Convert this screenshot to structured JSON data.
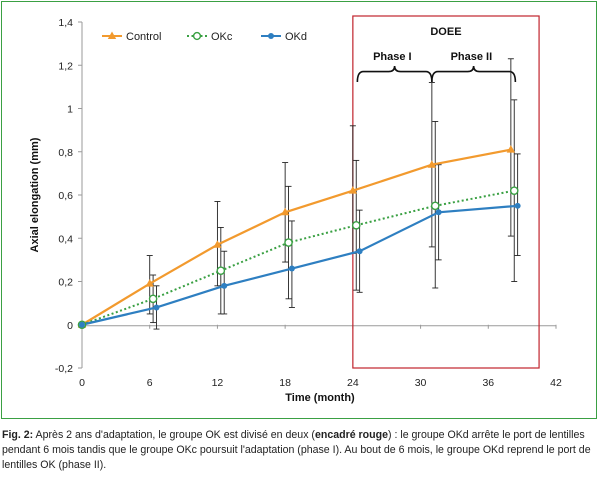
{
  "chart_data": {
    "type": "line",
    "xlabel": "Time (month)",
    "ylabel": "Axial elongation (mm)",
    "xlim": [
      0,
      42
    ],
    "ylim": [
      -0.2,
      1.4
    ],
    "xticks": [
      0,
      6,
      12,
      18,
      24,
      30,
      36,
      42
    ],
    "yticks": [
      -0.2,
      0,
      0.2,
      0.4,
      0.6,
      0.8,
      1,
      1.2,
      1.4
    ],
    "grid": false,
    "legend_position": "top-left",
    "series": [
      {
        "name": "Control",
        "color": "#f29a2e",
        "marker": "triangle",
        "line_style": "solid",
        "x": [
          0,
          6,
          12,
          18,
          24,
          31,
          38
        ],
        "y": [
          0,
          0.19,
          0.37,
          0.52,
          0.62,
          0.74,
          0.81
        ],
        "err_low": [
          0,
          0.05,
          0.18,
          0.29,
          0.33,
          0.36,
          0.41
        ],
        "err_high": [
          0,
          0.32,
          0.57,
          0.75,
          0.92,
          1.12,
          1.23
        ]
      },
      {
        "name": "OKc",
        "color": "#3aa043",
        "marker": "open-circle",
        "line_style": "dotted",
        "x": [
          0,
          6.3,
          12.3,
          18.3,
          24.3,
          31.3,
          38.3
        ],
        "y": [
          0,
          0.12,
          0.25,
          0.38,
          0.46,
          0.55,
          0.62
        ],
        "err_low": [
          0,
          0.01,
          0.05,
          0.12,
          0.16,
          0.17,
          0.2
        ],
        "err_high": [
          0,
          0.23,
          0.45,
          0.64,
          0.76,
          0.94,
          1.04
        ]
      },
      {
        "name": "OKd",
        "color": "#2e7fc1",
        "marker": "filled-circle",
        "line_style": "solid",
        "x": [
          0,
          6.6,
          12.6,
          18.6,
          24.6,
          31.6,
          38.6
        ],
        "y": [
          0,
          0.08,
          0.18,
          0.26,
          0.34,
          0.52,
          0.55
        ],
        "err_low": [
          0,
          -0.02,
          0.05,
          0.08,
          0.15,
          0.3,
          0.32
        ],
        "err_high": [
          0,
          0.18,
          0.34,
          0.48,
          0.53,
          0.74,
          0.79
        ]
      }
    ],
    "annotations": {
      "box_label": "DOEE",
      "box_color": "#c0232c",
      "box_x_range": [
        24,
        40.5
      ],
      "phase1_label": "Phase I",
      "phase1_range": [
        24,
        31
      ],
      "phase2_label": "Phase II",
      "phase2_range": [
        31,
        38
      ]
    }
  },
  "caption": {
    "label": "Fig. 2:",
    "text1": " Après 2 ans d'adaptation, le groupe OK est divisé en deux (",
    "bold1": "encadré rouge",
    "text2": ") : le groupe OKd arrête le port de lentilles pendant 6 mois tandis que le groupe OKc poursuit l'adaptation (phase I). Au bout de 6 mois, le groupe OKd reprend le port de lentilles OK (phase II)."
  }
}
